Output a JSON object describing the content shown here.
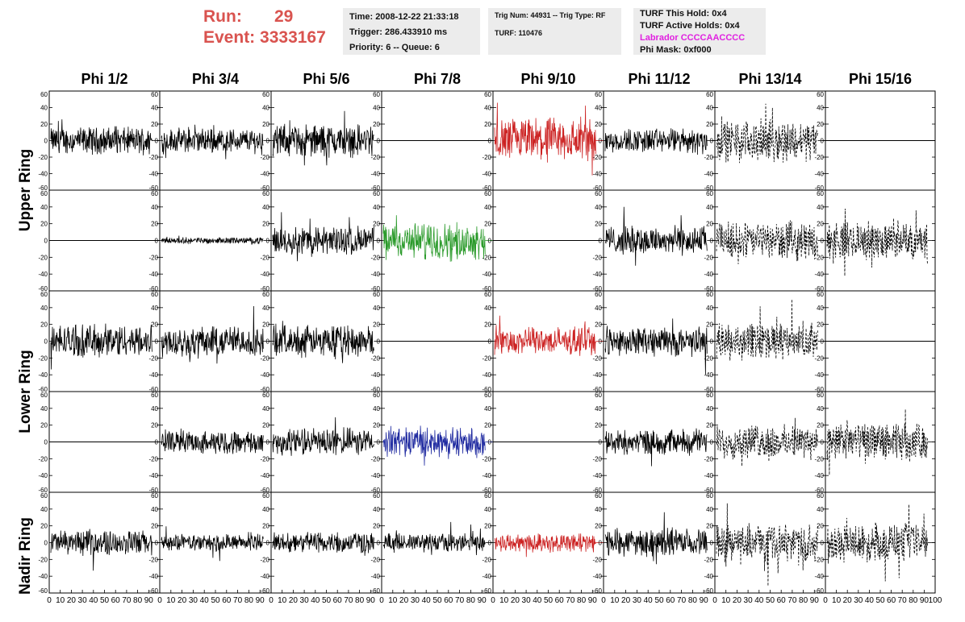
{
  "header": {
    "run_label": "Run:",
    "run_value": "29",
    "event_label": "Event:",
    "event_value": "3333167"
  },
  "info_box_1": {
    "time": "Time: 2008-12-22 21:33:18",
    "trigger": "Trigger: 286.433910 ms",
    "priority": "Priority: 6 -- Queue: 6"
  },
  "info_box_2": {
    "trig": "Trig Num: 44931 -- Trig Type: RF",
    "turf": "TURF: 110476"
  },
  "info_box_3": {
    "hold": "TURF This Hold: 0x4",
    "active": "TURF Active Holds: 0x4",
    "labrador": "Labrador CCCCAACCCC",
    "phimask": "Phi Mask: 0xf000"
  },
  "colors": {
    "header_red": "#d9534f",
    "labrador_magenta": "#e020e0",
    "trace_black": "#000000",
    "trace_red": "#cc2222",
    "trace_green": "#2a9a2a",
    "trace_blue": "#1f2aa0"
  },
  "chart_data": {
    "type": "line",
    "columns": [
      "Phi 1/2",
      "Phi 3/4",
      "Phi 5/6",
      "Phi 7/8",
      "Phi 9/10",
      "Phi 11/12",
      "Phi 13/14",
      "Phi 15/16"
    ],
    "rows": [
      "Upper Ring",
      "",
      "Lower Ring",
      "",
      "Nadir Ring"
    ],
    "row_labels_printed": [
      "Upper Ring",
      "Lower Ring",
      "Nadir Ring"
    ],
    "xlim": [
      0,
      100
    ],
    "ylim": [
      -60,
      60
    ],
    "yticks": [
      60,
      40,
      20,
      0,
      -20,
      -40,
      -60
    ],
    "xticks": [
      0,
      10,
      20,
      30,
      40,
      50,
      60,
      70,
      80,
      90,
      100
    ],
    "panels": [
      [
        {
          "style": "solid",
          "color": "black",
          "amp": 13
        },
        {
          "style": "solid",
          "color": "black",
          "amp": 12
        },
        {
          "style": "solid",
          "color": "black",
          "amp": 16
        },
        {
          "style": "flat",
          "color": "black",
          "amp": 0
        },
        {
          "style": "solid",
          "color": "red",
          "amp": 22
        },
        {
          "style": "solid",
          "color": "black",
          "amp": 12
        },
        {
          "style": "dashed",
          "color": "black",
          "amp": 20
        },
        {
          "style": "flat",
          "color": "black",
          "amp": 0
        }
      ],
      [
        {
          "style": "flat",
          "color": "black",
          "amp": 0
        },
        {
          "style": "solid",
          "color": "black",
          "amp": 3
        },
        {
          "style": "solid",
          "color": "black",
          "amp": 14
        },
        {
          "style": "solid",
          "color": "green",
          "amp": 17
        },
        {
          "style": "flat",
          "color": "black",
          "amp": 0
        },
        {
          "style": "solid",
          "color": "black",
          "amp": 14
        },
        {
          "style": "dashed",
          "color": "black",
          "amp": 18
        },
        {
          "style": "dashed",
          "color": "black",
          "amp": 18
        }
      ],
      [
        {
          "style": "solid",
          "color": "black",
          "amp": 16
        },
        {
          "style": "solid",
          "color": "black",
          "amp": 15
        },
        {
          "style": "solid",
          "color": "black",
          "amp": 15
        },
        {
          "style": "flat",
          "color": "black",
          "amp": 0
        },
        {
          "style": "solid",
          "color": "red",
          "amp": 13
        },
        {
          "style": "solid",
          "color": "black",
          "amp": 14
        },
        {
          "style": "dashed",
          "color": "black",
          "amp": 18
        },
        {
          "style": "flat",
          "color": "black",
          "amp": 0
        }
      ],
      [
        {
          "style": "flat",
          "color": "black",
          "amp": 0
        },
        {
          "style": "solid",
          "color": "black",
          "amp": 11
        },
        {
          "style": "solid",
          "color": "black",
          "amp": 13
        },
        {
          "style": "solid",
          "color": "blue",
          "amp": 14
        },
        {
          "style": "flat",
          "color": "black",
          "amp": 0
        },
        {
          "style": "solid",
          "color": "black",
          "amp": 12
        },
        {
          "style": "dashed",
          "color": "black",
          "amp": 16
        },
        {
          "style": "dashed",
          "color": "black",
          "amp": 18
        }
      ],
      [
        {
          "style": "solid",
          "color": "black",
          "amp": 12
        },
        {
          "style": "solid",
          "color": "black",
          "amp": 8
        },
        {
          "style": "solid",
          "color": "black",
          "amp": 10
        },
        {
          "style": "solid",
          "color": "black",
          "amp": 9
        },
        {
          "style": "solid",
          "color": "red",
          "amp": 9
        },
        {
          "style": "solid",
          "color": "black",
          "amp": 13
        },
        {
          "style": "dashed",
          "color": "black",
          "amp": 18
        },
        {
          "style": "dashed",
          "color": "black",
          "amp": 18
        }
      ]
    ]
  }
}
